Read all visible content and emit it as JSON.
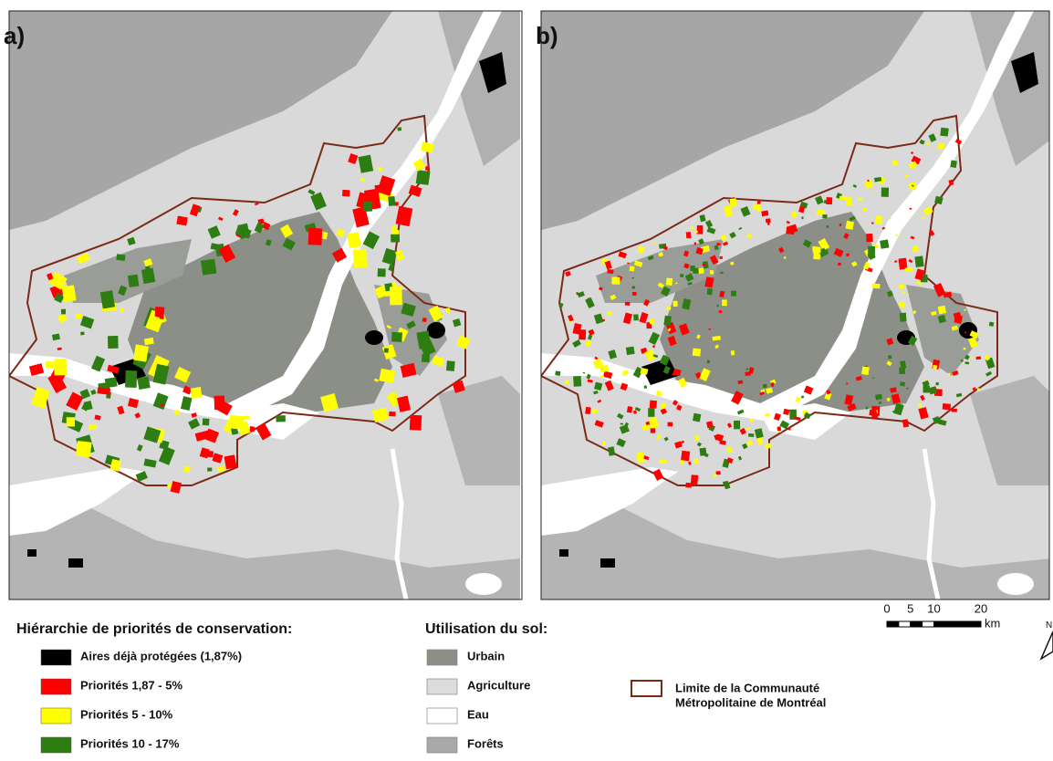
{
  "panels": [
    {
      "label": "a)"
    },
    {
      "label": "b)"
    }
  ],
  "legend_priorities": {
    "title": "Hiérarchie de priorités de conservation:",
    "items": [
      {
        "label": "Aires déjà protégées (1,87%)",
        "color": "#000000"
      },
      {
        "label": "Priorités 1,87 - 5%",
        "color": "#ff0000"
      },
      {
        "label": "Priorités 5 - 10%",
        "color": "#ffff00"
      },
      {
        "label": "Priorités 10 - 17%",
        "color": "#2e7d12"
      }
    ]
  },
  "legend_land_use": {
    "title": "Utilisation du sol:",
    "items": [
      {
        "label": "Urbain",
        "color": "#8b8f88"
      },
      {
        "label": "Agriculture",
        "color": "#dcdcdc"
      },
      {
        "label": "Eau",
        "color": "#ffffff"
      },
      {
        "label": "Forêts",
        "color": "#a8a8a8"
      }
    ]
  },
  "boundary_legend": {
    "lines": [
      "Limite de la Communauté",
      "Métropolitaine de Montréal"
    ],
    "color": "#7a2a17"
  },
  "scale_bar": {
    "ticks": [
      0,
      5,
      10,
      20
    ],
    "unit": "km"
  },
  "north": "N"
}
